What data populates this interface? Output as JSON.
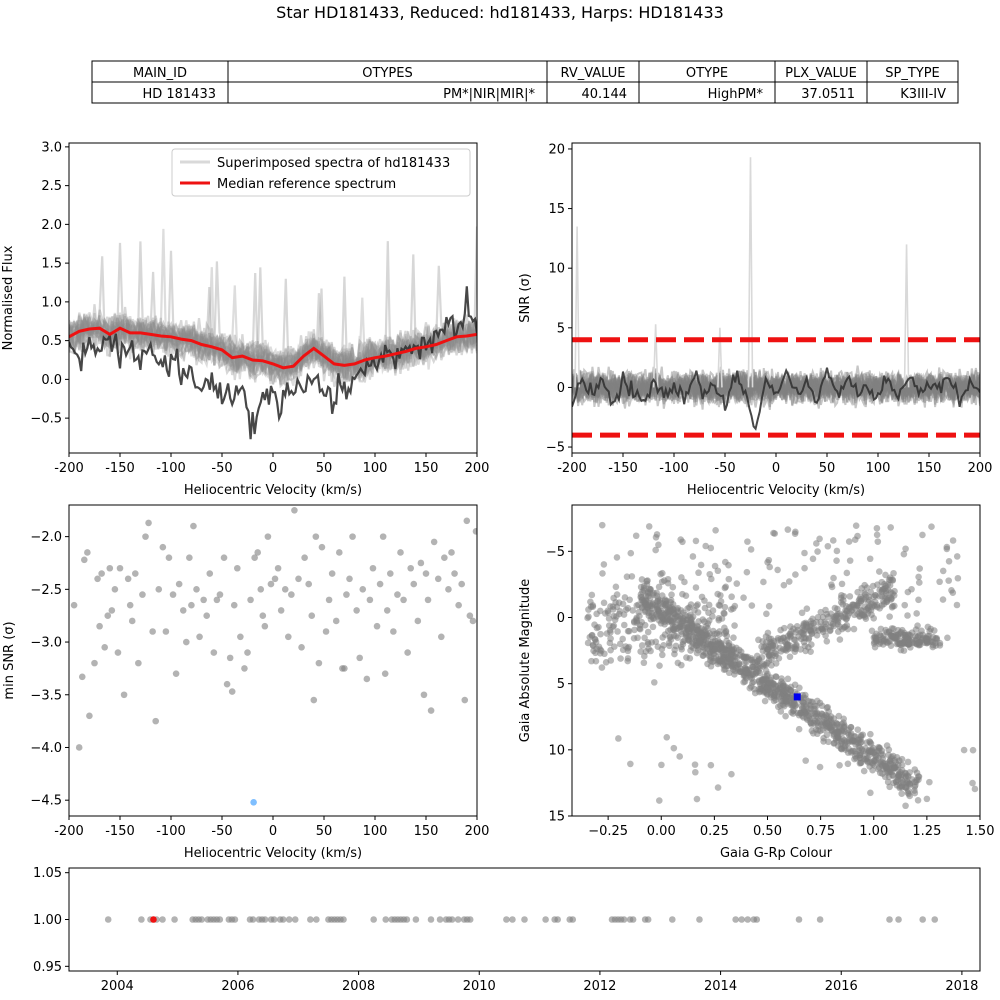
{
  "figure": {
    "title": "Star HD181433, Reduced: hd181433, Harps: HD181433"
  },
  "table": {
    "headers": [
      "MAIN_ID",
      "OTYPES",
      "RV_VALUE",
      "OTYPE",
      "PLX_VALUE",
      "SP_TYPE"
    ],
    "row": [
      "HD 181433",
      "PM*|NIR|MIR|*",
      "40.144",
      "HighPM*",
      "37.0511",
      "K3III-IV"
    ]
  },
  "chart_data": [
    {
      "id": "spectra",
      "type": "line",
      "xlabel": "Heliocentric Velocity (km/s)",
      "ylabel": "Normalised Flux",
      "xlim": [
        -200,
        200
      ],
      "ylim": [
        -0.95,
        3.05
      ],
      "xticks": [
        -200,
        -150,
        -100,
        -50,
        0,
        50,
        100,
        150,
        200
      ],
      "yticks": [
        -0.5,
        0.0,
        0.5,
        1.0,
        1.5,
        2.0,
        2.5,
        3.0
      ],
      "ytick_labels": [
        "−0.5",
        "0.0",
        "0.5",
        "1.0",
        "1.5",
        "2.0",
        "2.5",
        "3.0"
      ],
      "legend": {
        "position": "top-right",
        "entries": [
          "Superimposed spectra of hd181433",
          "Median reference spectrum"
        ]
      },
      "series": [
        {
          "name": "Median reference spectrum",
          "color": "#ee1111",
          "x": [
            -200,
            -190,
            -180,
            -170,
            -160,
            -150,
            -140,
            -130,
            -120,
            -110,
            -100,
            -90,
            -80,
            -70,
            -60,
            -50,
            -40,
            -30,
            -20,
            -10,
            0,
            10,
            20,
            30,
            40,
            50,
            60,
            70,
            80,
            90,
            100,
            110,
            120,
            130,
            140,
            150,
            160,
            170,
            180,
            190,
            200
          ],
          "y": [
            0.55,
            0.62,
            0.65,
            0.66,
            0.58,
            0.66,
            0.6,
            0.6,
            0.58,
            0.56,
            0.55,
            0.52,
            0.5,
            0.45,
            0.42,
            0.38,
            0.28,
            0.3,
            0.25,
            0.24,
            0.2,
            0.15,
            0.17,
            0.3,
            0.4,
            0.3,
            0.2,
            0.18,
            0.2,
            0.25,
            0.28,
            0.3,
            0.33,
            0.36,
            0.4,
            0.42,
            0.45,
            0.5,
            0.55,
            0.56,
            0.58
          ]
        },
        {
          "name": "",
          "color": "#333333",
          "x": [
            -200,
            -190,
            -180,
            -170,
            -160,
            -150,
            -140,
            -130,
            -120,
            -110,
            -100,
            -90,
            -80,
            -70,
            -60,
            -50,
            -40,
            -30,
            -20,
            -10,
            0,
            10,
            20,
            30,
            40,
            50,
            60,
            70,
            80,
            90,
            100,
            110,
            120,
            130,
            140,
            150,
            160,
            170,
            180,
            190,
            200
          ],
          "y": [
            0.55,
            0.2,
            0.45,
            0.3,
            0.55,
            0.25,
            0.4,
            0.2,
            0.45,
            0.15,
            0.3,
            0.0,
            0.1,
            -0.15,
            -0.05,
            -0.2,
            -0.3,
            -0.1,
            -0.7,
            -0.2,
            -0.25,
            -0.3,
            -0.1,
            -0.2,
            0.05,
            -0.2,
            -0.3,
            -0.1,
            -0.05,
            0.1,
            0.2,
            0.3,
            0.25,
            0.35,
            0.4,
            0.5,
            0.55,
            0.8,
            0.6,
            0.9,
            0.55
          ]
        }
      ]
    },
    {
      "id": "snr",
      "type": "line",
      "xlabel": "Heliocentric Velocity (km/s)",
      "ylabel": "SNR (σ)",
      "xlim": [
        -200,
        200
      ],
      "ylim": [
        -5.5,
        20.5
      ],
      "xticks": [
        -200,
        -150,
        -100,
        -50,
        0,
        50,
        100,
        150,
        200
      ],
      "yticks": [
        -5,
        0,
        5,
        10,
        15,
        20
      ],
      "ytick_labels": [
        "−5",
        "0",
        "5",
        "10",
        "15",
        "20"
      ],
      "thresholds": [
        4,
        -4
      ],
      "threshold_color": "#ee1111",
      "spikes": [
        {
          "x": -195,
          "y": 13.5
        },
        {
          "x": -25,
          "y": 19.3
        },
        {
          "x": 128,
          "y": 12.0
        },
        {
          "x": -118,
          "y": 5.3
        },
        {
          "x": -55,
          "y": 5.0
        }
      ],
      "series": [
        {
          "name": "",
          "color": "#333333",
          "x": [
            -200,
            -190,
            -180,
            -170,
            -160,
            -150,
            -140,
            -130,
            -120,
            -110,
            -100,
            -90,
            -80,
            -70,
            -60,
            -50,
            -40,
            -30,
            -20,
            -10,
            0,
            10,
            20,
            30,
            40,
            50,
            60,
            70,
            80,
            90,
            100,
            110,
            120,
            130,
            140,
            150,
            160,
            170,
            180,
            190,
            200
          ],
          "y": [
            -1.0,
            0.5,
            -0.5,
            1.0,
            -1.5,
            0.8,
            -0.3,
            -1.2,
            0.6,
            -0.8,
            0.2,
            -1.0,
            1.2,
            -0.5,
            0.3,
            -1.5,
            0.8,
            -0.2,
            -3.8,
            0.5,
            -0.8,
            1.0,
            -0.5,
            0.4,
            -1.2,
            1.5,
            -0.3,
            0.8,
            -0.5,
            0.2,
            -1.0,
            0.6,
            -0.4,
            1.0,
            -0.8,
            0.5,
            -0.2,
            0.8,
            -1.0,
            0.6,
            -0.3
          ]
        }
      ]
    },
    {
      "id": "minsnr",
      "type": "scatter",
      "xlabel": "Heliocentric Velocity (km/s)",
      "ylabel": "min SNR (σ)",
      "xlim": [
        -200,
        200
      ],
      "ylim": [
        -4.65,
        -1.7
      ],
      "xticks": [
        -200,
        -150,
        -100,
        -50,
        0,
        50,
        100,
        150,
        200
      ],
      "yticks": [
        -4.5,
        -4.0,
        -3.5,
        -3.0,
        -2.5,
        -2.0
      ],
      "ytick_labels": [
        "−4.5",
        "−4.0",
        "−3.5",
        "−3.0",
        "−2.5",
        "−2.0"
      ],
      "point_color": "#808080",
      "highlight": {
        "x": -19,
        "y": -4.52,
        "color": "#7fbfff"
      },
      "points": [
        [
          -195,
          -2.65
        ],
        [
          -190,
          -4.0
        ],
        [
          -187,
          -3.33
        ],
        [
          -185,
          -2.22
        ],
        [
          -182,
          -2.15
        ],
        [
          -180,
          -3.7
        ],
        [
          -175,
          -3.2
        ],
        [
          -172,
          -2.4
        ],
        [
          -168,
          -2.35
        ],
        [
          -165,
          -3.05
        ],
        [
          -160,
          -2.3
        ],
        [
          -158,
          -2.7
        ],
        [
          -155,
          -2.5
        ],
        [
          -152,
          -3.1
        ],
        [
          -150,
          -2.3
        ],
        [
          -146,
          -3.5
        ],
        [
          -142,
          -2.4
        ],
        [
          -138,
          -2.8
        ],
        [
          -135,
          -2.35
        ],
        [
          -132,
          -3.2
        ],
        [
          -128,
          -2.55
        ],
        [
          -125,
          -2.0
        ],
        [
          -122,
          -1.87
        ],
        [
          -118,
          -2.9
        ],
        [
          -115,
          -3.75
        ],
        [
          -112,
          -2.5
        ],
        [
          -108,
          -2.1
        ],
        [
          -105,
          -2.9
        ],
        [
          -102,
          -2.2
        ],
        [
          -98,
          -2.55
        ],
        [
          -95,
          -3.3
        ],
        [
          -92,
          -2.45
        ],
        [
          -88,
          -2.7
        ],
        [
          -85,
          -3.0
        ],
        [
          -82,
          -2.2
        ],
        [
          -78,
          -1.9
        ],
        [
          -75,
          -2.5
        ],
        [
          -72,
          -2.95
        ],
        [
          -68,
          -2.6
        ],
        [
          -65,
          -2.75
        ],
        [
          -62,
          -2.35
        ],
        [
          -58,
          -3.1
        ],
        [
          -55,
          -2.6
        ],
        [
          -52,
          -2.55
        ],
        [
          -48,
          -2.2
        ],
        [
          -45,
          -3.4
        ],
        [
          -42,
          -3.15
        ],
        [
          -38,
          -2.65
        ],
        [
          -35,
          -2.3
        ],
        [
          -32,
          -2.95
        ],
        [
          -28,
          -3.25
        ],
        [
          -25,
          -3.1
        ],
        [
          -22,
          -2.6
        ],
        [
          -18,
          -2.2
        ],
        [
          -15,
          -2.15
        ],
        [
          -12,
          -2.5
        ],
        [
          -8,
          -2.85
        ],
        [
          -5,
          -2.0
        ],
        [
          -2,
          -2.45
        ],
        [
          2,
          -2.4
        ],
        [
          5,
          -2.3
        ],
        [
          8,
          -2.7
        ],
        [
          12,
          -2.5
        ],
        [
          15,
          -2.95
        ],
        [
          18,
          -2.55
        ],
        [
          21,
          -1.75
        ],
        [
          25,
          -2.4
        ],
        [
          28,
          -3.05
        ],
        [
          31,
          -2.2
        ],
        [
          35,
          -2.45
        ],
        [
          38,
          -2.75
        ],
        [
          42,
          -2.0
        ],
        [
          45,
          -3.2
        ],
        [
          48,
          -2.1
        ],
        [
          52,
          -2.9
        ],
        [
          55,
          -2.6
        ],
        [
          58,
          -2.35
        ],
        [
          62,
          -2.8
        ],
        [
          65,
          -2.15
        ],
        [
          68,
          -3.25
        ],
        [
          72,
          -2.55
        ],
        [
          75,
          -2.4
        ],
        [
          78,
          -2.0
        ],
        [
          82,
          -2.7
        ],
        [
          85,
          -3.15
        ],
        [
          88,
          -2.5
        ],
        [
          92,
          -3.35
        ],
        [
          95,
          -2.6
        ],
        [
          98,
          -2.3
        ],
        [
          102,
          -2.85
        ],
        [
          105,
          -2.45
        ],
        [
          108,
          -2.0
        ],
        [
          112,
          -2.7
        ],
        [
          115,
          -2.35
        ],
        [
          118,
          -2.9
        ],
        [
          122,
          -2.55
        ],
        [
          125,
          -2.15
        ],
        [
          128,
          -2.6
        ],
        [
          132,
          -3.1
        ],
        [
          135,
          -2.3
        ],
        [
          138,
          -2.45
        ],
        [
          142,
          -2.8
        ],
        [
          145,
          -2.25
        ],
        [
          148,
          -3.5
        ],
        [
          152,
          -2.6
        ],
        [
          155,
          -3.65
        ],
        [
          158,
          -2.05
        ],
        [
          162,
          -2.4
        ],
        [
          165,
          -2.95
        ],
        [
          168,
          -2.2
        ],
        [
          172,
          -2.5
        ],
        [
          175,
          -2.15
        ],
        [
          178,
          -2.35
        ],
        [
          182,
          -2.65
        ],
        [
          185,
          -2.45
        ],
        [
          188,
          -3.55
        ],
        [
          190,
          -1.85
        ],
        [
          193,
          -2.75
        ],
        [
          196,
          -2.8
        ],
        [
          199,
          -1.95
        ],
        [
          -170,
          -2.85
        ],
        [
          -162,
          -2.75
        ],
        [
          -140,
          -2.65
        ],
        [
          -80,
          -2.65
        ],
        [
          -40,
          -3.47
        ],
        [
          -10,
          -2.75
        ],
        [
          40,
          -3.55
        ],
        [
          70,
          -3.25
        ],
        [
          110,
          -3.3
        ],
        [
          150,
          -2.35
        ]
      ]
    },
    {
      "id": "hr",
      "type": "scatter",
      "xlabel": "Gaia G-Rp Colour",
      "ylabel": "Gaia Absolute Magnitude",
      "xlim": [
        -0.42,
        1.5
      ],
      "ylim": [
        15,
        -8.5
      ],
      "y_inverted": true,
      "xticks": [
        -0.25,
        0.0,
        0.25,
        0.5,
        0.75,
        1.0,
        1.25,
        1.5
      ],
      "xtick_labels": [
        "−0.25",
        "0.00",
        "0.25",
        "0.50",
        "0.75",
        "1.00",
        "1.25",
        "1.50"
      ],
      "yticks": [
        -5,
        0,
        5,
        10,
        15
      ],
      "ytick_labels": [
        "−5",
        "0",
        "5",
        "10",
        "15"
      ],
      "point_color": "#808080",
      "highlight": {
        "x": 0.64,
        "y": 6.0,
        "color": "#0000ee"
      }
    },
    {
      "id": "timeline",
      "type": "scatter",
      "xlabel": "",
      "ylabel": "",
      "xlim": [
        2003.2,
        2018.3
      ],
      "ylim": [
        0.945,
        1.055
      ],
      "xticks": [
        2004,
        2006,
        2008,
        2010,
        2012,
        2014,
        2016,
        2018
      ],
      "yticks": [
        0.95,
        1.0,
        1.05
      ],
      "ytick_labels": [
        "0.95",
        "1.00",
        "1.05"
      ],
      "point_color": "#808080",
      "highlight": {
        "x": 2004.6,
        "y": 1.0,
        "color": "#ee1111"
      },
      "x": [
        2003.85,
        2004.4,
        2004.55,
        2004.65,
        2004.75,
        2004.95,
        2005.25,
        2005.3,
        2005.35,
        2005.4,
        2005.5,
        2005.55,
        2005.6,
        2005.65,
        2005.7,
        2005.85,
        2005.9,
        2005.95,
        2006.2,
        2006.25,
        2006.35,
        2006.4,
        2006.45,
        2006.55,
        2006.6,
        2006.7,
        2006.75,
        2006.85,
        2006.95,
        2007.2,
        2007.3,
        2007.5,
        2007.55,
        2007.6,
        2007.65,
        2007.7,
        2007.75,
        2008.25,
        2008.45,
        2008.55,
        2008.6,
        2008.65,
        2008.7,
        2008.75,
        2008.8,
        2008.95,
        2009.2,
        2009.35,
        2009.45,
        2009.5,
        2009.55,
        2009.65,
        2009.75,
        2009.8,
        2009.85,
        2010.45,
        2010.55,
        2010.75,
        2011.1,
        2011.25,
        2011.3,
        2011.5,
        2011.55,
        2012.2,
        2012.25,
        2012.3,
        2012.35,
        2012.4,
        2012.5,
        2012.55,
        2012.75,
        2012.8,
        2013.2,
        2013.65,
        2014.25,
        2014.35,
        2014.45,
        2014.55,
        2014.6,
        2015.3,
        2015.65,
        2016.8,
        2016.95,
        2017.35,
        2017.55
      ]
    }
  ]
}
